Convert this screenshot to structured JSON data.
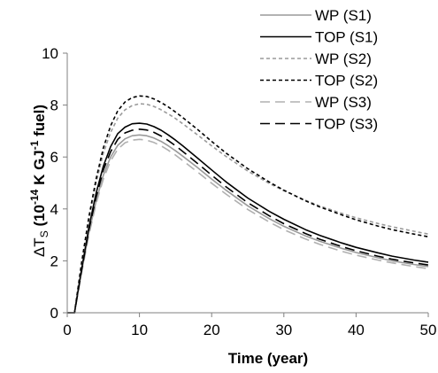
{
  "chart_data": {
    "type": "line",
    "xlabel": "Time (year)",
    "ylabel": {
      "symbol": "ΔT",
      "symbol_sub": "S",
      "open": " (10",
      "exponent": "-14",
      "units": " K GJ",
      "units_exp": "-1",
      "tail": " fuel)"
    },
    "xlim": [
      0,
      50
    ],
    "ylim": [
      0,
      10
    ],
    "xticks": [
      "0",
      "10",
      "20",
      "30",
      "40",
      "50"
    ],
    "yticks": [
      "0",
      "2",
      "4",
      "6",
      "8",
      "10"
    ],
    "grid": false,
    "legend_position": "top-right",
    "x": [
      0,
      1,
      2,
      3,
      4,
      5,
      6,
      7,
      8,
      9,
      10,
      11,
      12,
      13,
      14,
      15,
      16,
      18,
      20,
      22,
      25,
      28,
      30,
      33,
      35,
      38,
      40,
      43,
      45,
      48,
      50
    ],
    "series": [
      {
        "name": "WP (S1)",
        "color": "#9a9a9a",
        "dash": "solid",
        "values": [
          0,
          0,
          1.6,
          3.1,
          4.3,
          5.3,
          6.0,
          6.45,
          6.7,
          6.82,
          6.85,
          6.82,
          6.73,
          6.6,
          6.43,
          6.24,
          6.03,
          5.6,
          5.15,
          4.72,
          4.12,
          3.62,
          3.33,
          2.96,
          2.75,
          2.48,
          2.32,
          2.12,
          2.0,
          1.86,
          1.78
        ]
      },
      {
        "name": "TOP (S1)",
        "color": "#000000",
        "dash": "solid",
        "values": [
          0,
          0,
          1.7,
          3.3,
          4.6,
          5.65,
          6.4,
          6.9,
          7.15,
          7.28,
          7.3,
          7.27,
          7.17,
          7.03,
          6.85,
          6.65,
          6.43,
          5.97,
          5.5,
          5.04,
          4.42,
          3.9,
          3.6,
          3.2,
          2.98,
          2.69,
          2.52,
          2.31,
          2.18,
          2.03,
          1.95
        ]
      },
      {
        "name": "WP (S2)",
        "color": "#9a9a9a",
        "dash": "dotted",
        "values": [
          0,
          0,
          1.9,
          3.6,
          5.0,
          6.15,
          6.95,
          7.5,
          7.82,
          7.98,
          8.05,
          8.03,
          7.95,
          7.82,
          7.66,
          7.48,
          7.28,
          6.86,
          6.43,
          6.02,
          5.46,
          4.98,
          4.7,
          4.33,
          4.11,
          3.83,
          3.66,
          3.44,
          3.31,
          3.14,
          3.03
        ]
      },
      {
        "name": "TOP (S2)",
        "color": "#000000",
        "dash": "dotted",
        "values": [
          0,
          0,
          1.95,
          3.7,
          5.15,
          6.35,
          7.2,
          7.78,
          8.12,
          8.29,
          8.35,
          8.33,
          8.24,
          8.1,
          7.93,
          7.73,
          7.52,
          7.07,
          6.6,
          6.15,
          5.55,
          5.03,
          4.72,
          4.31,
          4.07,
          3.77,
          3.58,
          3.34,
          3.2,
          3.03,
          2.93
        ]
      },
      {
        "name": "WP (S3)",
        "color": "#b0b0b0",
        "dash": "dashed",
        "values": [
          0,
          0,
          1.55,
          3.0,
          4.2,
          5.15,
          5.85,
          6.3,
          6.55,
          6.65,
          6.68,
          6.65,
          6.56,
          6.43,
          6.26,
          6.07,
          5.86,
          5.43,
          4.99,
          4.57,
          3.98,
          3.49,
          3.2,
          2.84,
          2.63,
          2.37,
          2.22,
          2.03,
          1.92,
          1.78,
          1.7
        ]
      },
      {
        "name": "TOP (S3)",
        "color": "#000000",
        "dash": "dashed",
        "values": [
          0,
          0,
          1.65,
          3.2,
          4.45,
          5.5,
          6.2,
          6.68,
          6.93,
          7.03,
          7.07,
          7.04,
          6.95,
          6.81,
          6.63,
          6.43,
          6.21,
          5.76,
          5.3,
          4.85,
          4.24,
          3.73,
          3.43,
          3.05,
          2.83,
          2.55,
          2.39,
          2.18,
          2.06,
          1.92,
          1.84
        ]
      }
    ]
  }
}
